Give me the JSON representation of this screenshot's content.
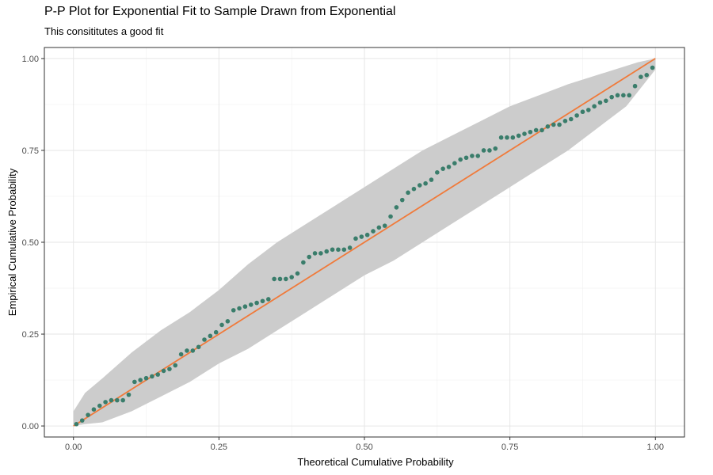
{
  "chart_data": {
    "type": "scatter",
    "title": "P-P Plot for Exponential Fit to Sample Drawn from Exponential",
    "subtitle": "This consititutes a good fit",
    "xlabel": "Theoretical Cumulative Probability",
    "ylabel": "Empirical Cumulative Probability",
    "xlim": [
      -0.05,
      1.05
    ],
    "ylim": [
      -0.03,
      1.03
    ],
    "x_ticks": [
      0.0,
      0.25,
      0.5,
      0.75,
      1.0
    ],
    "x_tick_labels": [
      "0.00",
      "0.25",
      "0.50",
      "0.75",
      "1.00"
    ],
    "y_ticks": [
      0.0,
      0.25,
      0.5,
      0.75,
      1.0
    ],
    "y_tick_labels": [
      "0.00",
      "0.25",
      "0.50",
      "0.75",
      "1.00"
    ],
    "grid": true,
    "reference_line": {
      "x": [
        0,
        1
      ],
      "y": [
        0,
        1
      ],
      "color": "#f07a3a"
    },
    "point_color": "#3a7d6b",
    "band_color": "#cccccc",
    "band": {
      "x": [
        0.0,
        0.02,
        0.05,
        0.1,
        0.15,
        0.2,
        0.25,
        0.3,
        0.35,
        0.4,
        0.45,
        0.5,
        0.55,
        0.6,
        0.65,
        0.7,
        0.75,
        0.8,
        0.85,
        0.9,
        0.95,
        0.97,
        1.0
      ],
      "upper": [
        0.04,
        0.09,
        0.13,
        0.2,
        0.26,
        0.31,
        0.37,
        0.44,
        0.5,
        0.55,
        0.6,
        0.65,
        0.7,
        0.75,
        0.79,
        0.83,
        0.87,
        0.9,
        0.93,
        0.955,
        0.98,
        0.99,
        1.0
      ],
      "lower": [
        0.0,
        0.005,
        0.01,
        0.04,
        0.08,
        0.12,
        0.17,
        0.21,
        0.26,
        0.31,
        0.36,
        0.41,
        0.45,
        0.5,
        0.55,
        0.6,
        0.65,
        0.7,
        0.75,
        0.81,
        0.87,
        0.91,
        0.97
      ]
    },
    "points": {
      "x": [
        0.005,
        0.015,
        0.025,
        0.035,
        0.045,
        0.055,
        0.065,
        0.075,
        0.085,
        0.095,
        0.105,
        0.115,
        0.125,
        0.135,
        0.145,
        0.155,
        0.165,
        0.175,
        0.185,
        0.195,
        0.205,
        0.215,
        0.225,
        0.235,
        0.245,
        0.255,
        0.265,
        0.275,
        0.285,
        0.295,
        0.305,
        0.315,
        0.325,
        0.335,
        0.345,
        0.355,
        0.365,
        0.375,
        0.385,
        0.395,
        0.405,
        0.415,
        0.425,
        0.435,
        0.445,
        0.455,
        0.465,
        0.475,
        0.485,
        0.495,
        0.505,
        0.515,
        0.525,
        0.535,
        0.545,
        0.555,
        0.565,
        0.575,
        0.585,
        0.595,
        0.605,
        0.615,
        0.625,
        0.635,
        0.645,
        0.655,
        0.665,
        0.675,
        0.685,
        0.695,
        0.705,
        0.715,
        0.725,
        0.735,
        0.745,
        0.755,
        0.765,
        0.775,
        0.785,
        0.795,
        0.805,
        0.815,
        0.825,
        0.835,
        0.845,
        0.855,
        0.865,
        0.875,
        0.885,
        0.895,
        0.905,
        0.915,
        0.925,
        0.935,
        0.945,
        0.955,
        0.965,
        0.975,
        0.985,
        0.995
      ],
      "y": [
        0.005,
        0.015,
        0.03,
        0.045,
        0.055,
        0.065,
        0.07,
        0.07,
        0.07,
        0.085,
        0.12,
        0.125,
        0.13,
        0.135,
        0.14,
        0.15,
        0.155,
        0.165,
        0.195,
        0.205,
        0.205,
        0.215,
        0.235,
        0.245,
        0.255,
        0.275,
        0.285,
        0.315,
        0.32,
        0.325,
        0.33,
        0.335,
        0.34,
        0.345,
        0.4,
        0.4,
        0.4,
        0.405,
        0.415,
        0.445,
        0.46,
        0.47,
        0.47,
        0.475,
        0.48,
        0.48,
        0.48,
        0.485,
        0.51,
        0.515,
        0.52,
        0.53,
        0.54,
        0.545,
        0.57,
        0.595,
        0.615,
        0.635,
        0.645,
        0.655,
        0.66,
        0.67,
        0.69,
        0.7,
        0.705,
        0.715,
        0.725,
        0.73,
        0.735,
        0.735,
        0.75,
        0.75,
        0.755,
        0.785,
        0.785,
        0.785,
        0.79,
        0.795,
        0.8,
        0.805,
        0.805,
        0.815,
        0.82,
        0.82,
        0.83,
        0.835,
        0.845,
        0.855,
        0.86,
        0.87,
        0.88,
        0.885,
        0.895,
        0.9,
        0.9,
        0.9,
        0.925,
        0.95,
        0.955,
        0.975
      ]
    }
  }
}
